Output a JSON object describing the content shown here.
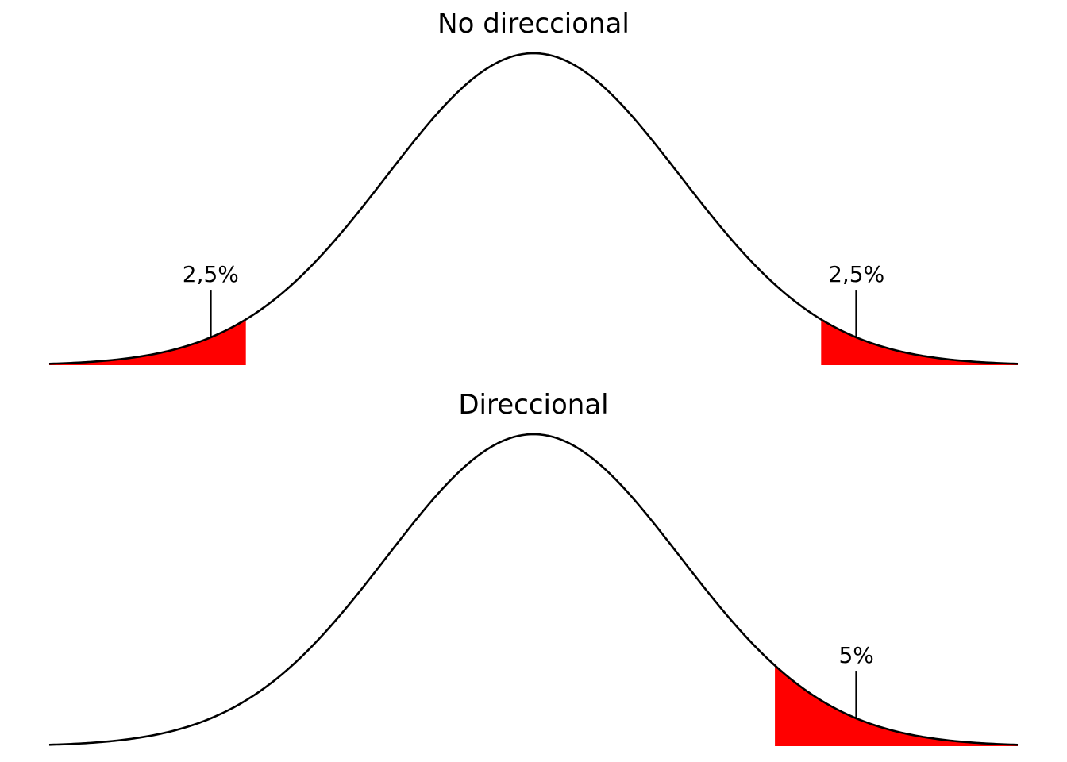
{
  "chart_data": [
    {
      "type": "area",
      "title": "No direccional",
      "distribution": "normal",
      "mean": 0,
      "sd": 1,
      "xlim": [
        -3.3,
        3.3
      ],
      "grid": false,
      "legend": "none",
      "shaded_regions": [
        {
          "from": -3.3,
          "to": -1.96,
          "area_percent": 2.5,
          "color": "#ff0000"
        },
        {
          "from": 1.96,
          "to": 3.3,
          "area_percent": 2.5,
          "color": "#ff0000"
        }
      ],
      "annotations": [
        {
          "text": "2,5%",
          "x": -2.2
        },
        {
          "text": "2,5%",
          "x": 2.2
        }
      ]
    },
    {
      "type": "area",
      "title": "Direccional",
      "distribution": "normal",
      "mean": 0,
      "sd": 1,
      "xlim": [
        -3.3,
        3.3
      ],
      "grid": false,
      "legend": "none",
      "shaded_regions": [
        {
          "from": 1.645,
          "to": 3.3,
          "area_percent": 5,
          "color": "#ff0000"
        }
      ],
      "annotations": [
        {
          "text": "5%",
          "x": 2.2
        }
      ]
    }
  ],
  "colors": {
    "curve": "#000000",
    "fill": "#ff0000",
    "background": "#ffffff"
  }
}
